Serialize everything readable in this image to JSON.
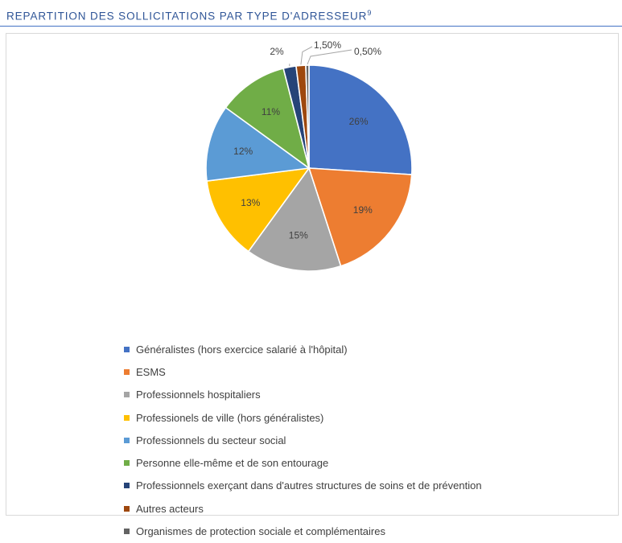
{
  "header": {
    "title": "REPARTITION DES SOLLICITATIONS PAR TYPE D'ADRESSEUR",
    "footnote": "9"
  },
  "chart_data": {
    "type": "pie",
    "legend_position": "bottom",
    "slices": [
      {
        "name": "Généralistes (hors exercice salarié à l'hôpital)",
        "value": 26,
        "label": "26%",
        "color": "#4472c4"
      },
      {
        "name": "ESMS",
        "value": 19,
        "label": "19%",
        "color": "#ed7d31"
      },
      {
        "name": "Professionnels hospitaliers",
        "value": 15,
        "label": "15%",
        "color": "#a5a5a5"
      },
      {
        "name": "Professionels de ville (hors généralistes)",
        "value": 13,
        "label": "13%",
        "color": "#ffc000"
      },
      {
        "name": "Professionnels du secteur social",
        "value": 12,
        "label": "12%",
        "color": "#5b9bd5"
      },
      {
        "name": "Personne elle-même et de son entourage",
        "value": 11,
        "label": "11%",
        "color": "#70ad47"
      },
      {
        "name": "Professionnels exerçant dans d'autres structures de soins et de prévention",
        "value": 2,
        "label": "2%",
        "color": "#264478"
      },
      {
        "name": "Autres acteurs",
        "value": 1.5,
        "label": "1,50%",
        "color": "#9e480e"
      },
      {
        "name": "Organismes de protection sociale et complémentaires",
        "value": 0.5,
        "label": "0,50%",
        "color": "#636363"
      }
    ]
  }
}
